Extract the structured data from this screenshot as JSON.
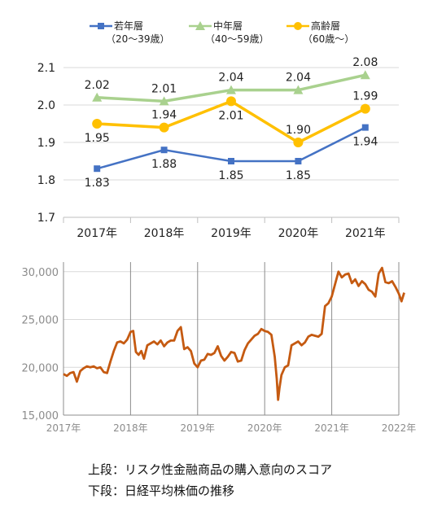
{
  "chart_data": [
    {
      "type": "line",
      "categories": [
        "2017年",
        "2018年",
        "2019年",
        "2020年",
        "2021年"
      ],
      "ylim": [
        1.7,
        2.1
      ],
      "yticks": [
        "1.7",
        "1.8",
        "1.9",
        "2.0",
        "2.1"
      ],
      "grid": true,
      "legend_position": "top",
      "series": [
        {
          "name": "若年層",
          "name_sub": "（20～39歳）",
          "color": "#4472c4",
          "marker": "square",
          "values": [
            1.83,
            1.88,
            1.85,
            1.85,
            1.94
          ],
          "labels": [
            "1.83",
            "1.88",
            "1.85",
            "1.85",
            "1.94"
          ]
        },
        {
          "name": "中年層",
          "name_sub": "（40～59歳）",
          "color": "#a9d18e",
          "marker": "triangle",
          "values": [
            2.02,
            2.01,
            2.04,
            2.04,
            2.08
          ],
          "labels": [
            "2.02",
            "2.01",
            "2.04",
            "2.04",
            "2.08"
          ]
        },
        {
          "name": "高齢層",
          "name_sub": "（60歳～）",
          "color": "#ffc000",
          "marker": "circle",
          "values": [
            1.95,
            1.94,
            2.01,
            1.9,
            1.99
          ],
          "labels": [
            "1.95",
            "1.94",
            "2.01",
            "1.90",
            "1.99"
          ]
        }
      ]
    },
    {
      "type": "line",
      "ylim": [
        15000,
        31000
      ],
      "yticks": [
        15000,
        20000,
        25000,
        30000
      ],
      "ytick_labels": [
        "15,000",
        "20,000",
        "25,000",
        "30,000"
      ],
      "xlim": [
        2017.0,
        2022.0
      ],
      "xticks": [
        2017,
        2018,
        2019,
        2020,
        2021,
        2022
      ],
      "xtick_labels": [
        "2017年",
        "2018年",
        "2019年",
        "2020年",
        "2021年",
        "2022年"
      ],
      "grid": true,
      "series": [
        {
          "color": "#c55a11",
          "x": [
            2017.0,
            2017.05,
            2017.1,
            2017.15,
            2017.2,
            2017.25,
            2017.3,
            2017.35,
            2017.4,
            2017.45,
            2017.5,
            2017.55,
            2017.6,
            2017.65,
            2017.7,
            2017.75,
            2017.8,
            2017.85,
            2017.9,
            2017.95,
            2018.0,
            2018.04,
            2018.08,
            2018.12,
            2018.16,
            2018.2,
            2018.25,
            2018.3,
            2018.35,
            2018.4,
            2018.45,
            2018.5,
            2018.55,
            2018.6,
            2018.65,
            2018.7,
            2018.75,
            2018.8,
            2018.85,
            2018.9,
            2018.95,
            2019.0,
            2019.05,
            2019.1,
            2019.15,
            2019.2,
            2019.25,
            2019.3,
            2019.35,
            2019.4,
            2019.45,
            2019.5,
            2019.55,
            2019.6,
            2019.65,
            2019.7,
            2019.75,
            2019.8,
            2019.85,
            2019.9,
            2019.95,
            2020.0,
            2020.05,
            2020.1,
            2020.15,
            2020.18,
            2020.2,
            2020.22,
            2020.25,
            2020.3,
            2020.35,
            2020.4,
            2020.45,
            2020.5,
            2020.55,
            2020.6,
            2020.65,
            2020.7,
            2020.75,
            2020.8,
            2020.85,
            2020.9,
            2020.95,
            2021.0,
            2021.05,
            2021.1,
            2021.15,
            2021.2,
            2021.25,
            2021.3,
            2021.35,
            2021.4,
            2021.45,
            2021.5,
            2021.55,
            2021.6,
            2021.65,
            2021.7,
            2021.75,
            2021.8,
            2021.85,
            2021.9,
            2021.95,
            2022.0,
            2022.04,
            2022.08
          ],
          "y": [
            19300,
            19100,
            19400,
            19500,
            18500,
            19600,
            19900,
            20100,
            20000,
            20100,
            19900,
            20000,
            19500,
            19400,
            20600,
            21700,
            22600,
            22700,
            22500,
            22900,
            23700,
            23800,
            21600,
            21300,
            21700,
            20900,
            22300,
            22500,
            22700,
            22400,
            22800,
            22200,
            22600,
            22800,
            22800,
            23800,
            24200,
            21900,
            22100,
            21700,
            20400,
            20000,
            20700,
            20800,
            21400,
            21300,
            21500,
            22200,
            21200,
            20700,
            21100,
            21600,
            21500,
            20600,
            20700,
            21800,
            22500,
            22900,
            23300,
            23500,
            24000,
            23800,
            23700,
            23400,
            21100,
            18800,
            16600,
            17800,
            19200,
            20000,
            20200,
            22300,
            22500,
            22700,
            22300,
            22600,
            23200,
            23400,
            23300,
            23200,
            23500,
            26400,
            26700,
            27400,
            28700,
            30000,
            29400,
            29700,
            29800,
            28800,
            29200,
            28500,
            29000,
            28700,
            28100,
            27900,
            27400,
            29800,
            30400,
            28900,
            28800,
            29000,
            28400,
            27700,
            26900,
            27800
          ]
        }
      ]
    }
  ],
  "caption": {
    "line1": "上段：リスク性金融商品の購入意向のスコア",
    "line2": "下段：日経平均株価の推移"
  }
}
